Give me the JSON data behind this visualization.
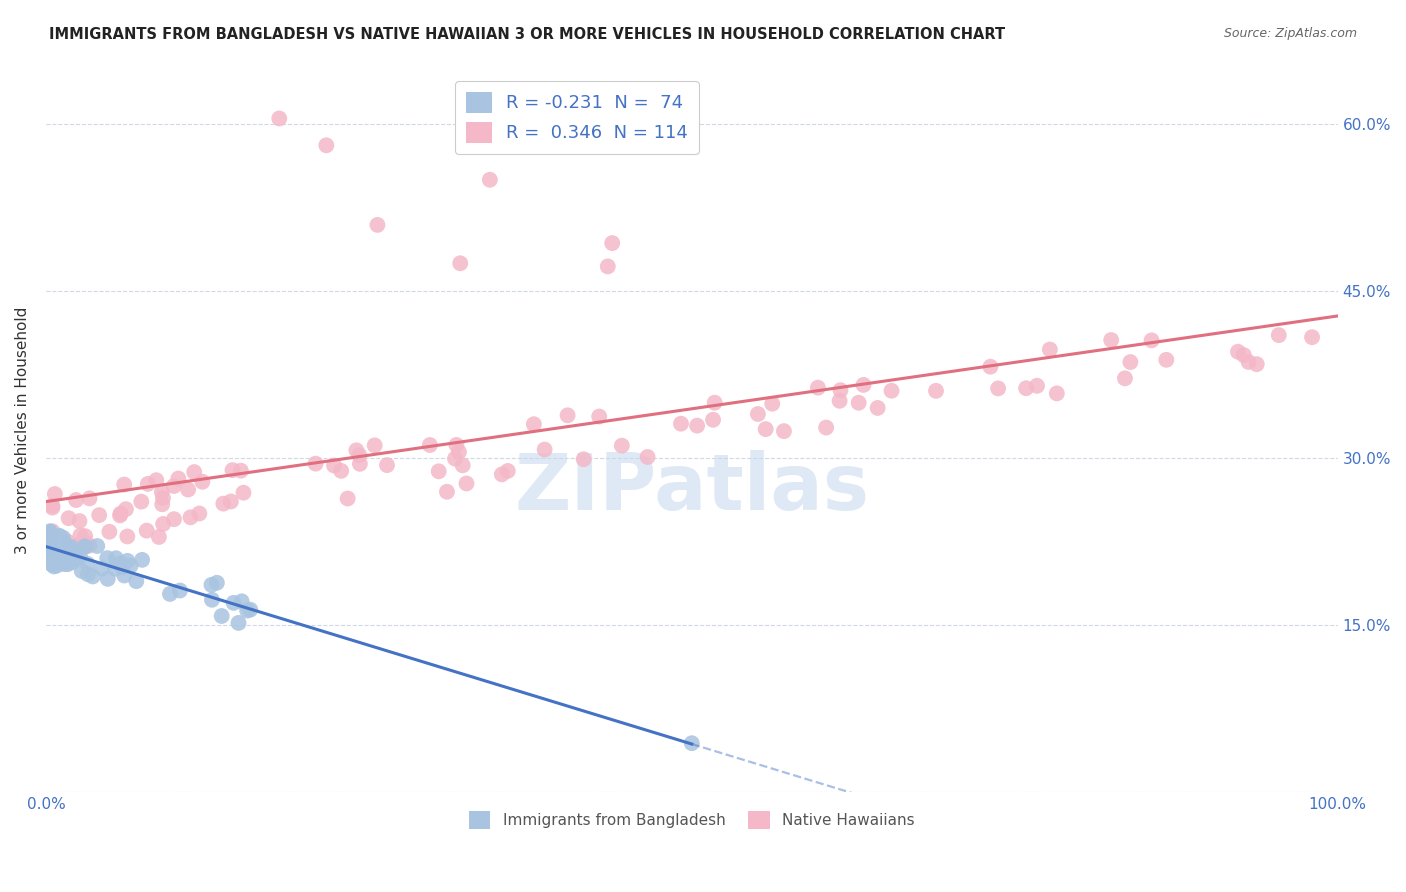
{
  "title": "IMMIGRANTS FROM BANGLADESH VS NATIVE HAWAIIAN 3 OR MORE VEHICLES IN HOUSEHOLD CORRELATION CHART",
  "source": "Source: ZipAtlas.com",
  "ylabel": "3 or more Vehicles in Household",
  "xlim": [
    0.0,
    1.0
  ],
  "ylim": [
    0.0,
    0.65
  ],
  "xtick_positions": [
    0.0,
    0.1,
    0.2,
    0.3,
    0.4,
    0.5,
    0.6,
    0.7,
    0.8,
    0.9,
    1.0
  ],
  "xticklabels": [
    "0.0%",
    "",
    "",
    "",
    "",
    "",
    "",
    "",
    "",
    "",
    "100.0%"
  ],
  "ytick_positions": [
    0.0,
    0.15,
    0.3,
    0.45,
    0.6
  ],
  "yticklabels_right": [
    "",
    "15.0%",
    "30.0%",
    "45.0%",
    "60.0%"
  ],
  "blue_color": "#a8c4e0",
  "pink_color": "#f4b8c8",
  "blue_line_color": "#4472c4",
  "pink_line_color": "#e07080",
  "watermark": "ZIPatlas",
  "blue_R": -0.231,
  "blue_N": 74,
  "pink_R": 0.346,
  "pink_N": 114,
  "legend1_R": "-0.231",
  "legend1_N": "74",
  "legend2_R": "0.346",
  "legend2_N": "114",
  "legend_bottom_1": "Immigrants from Bangladesh",
  "legend_bottom_2": "Native Hawaiians"
}
